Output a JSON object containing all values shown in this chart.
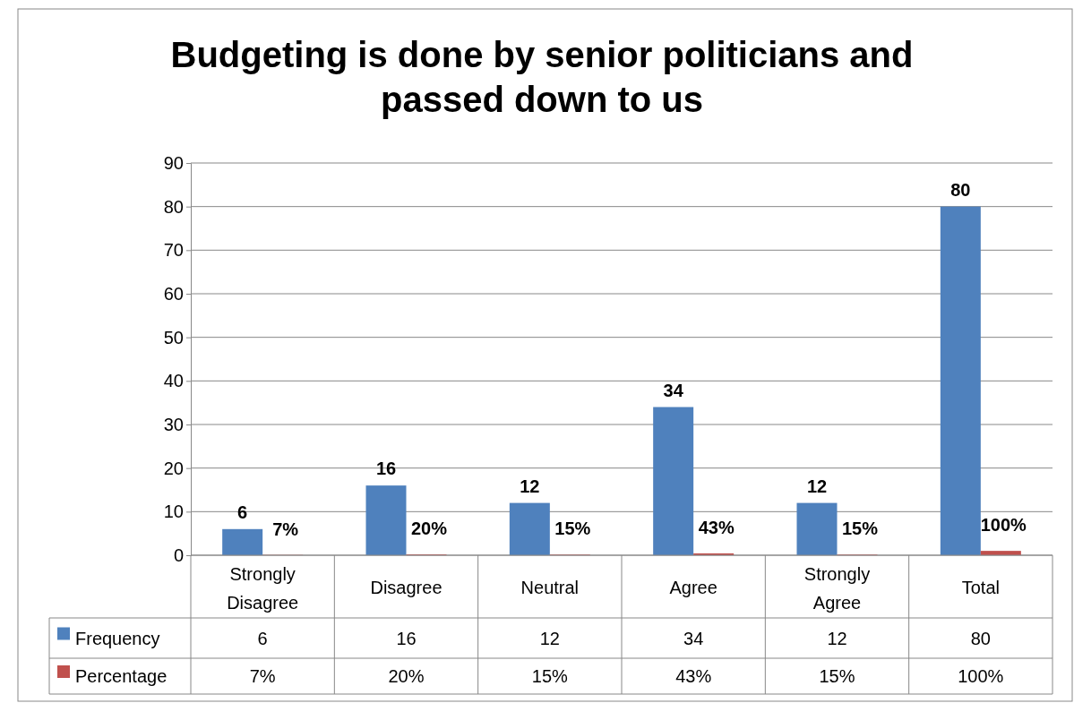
{
  "chart_data": {
    "type": "bar",
    "title": "Budgeting is done by senior politicians and passed down to us",
    "categories": [
      "Strongly Disagree",
      "Disagree",
      "Neutral",
      "Agree",
      "Strongly Agree",
      "Total"
    ],
    "series": [
      {
        "name": "Frequency",
        "color": "#4f81bd",
        "values": [
          6,
          16,
          12,
          34,
          12,
          80
        ],
        "value_labels": [
          "6",
          "16",
          "12",
          "34",
          "12",
          "80"
        ]
      },
      {
        "name": "Percentage",
        "color": "#c0504d",
        "values": [
          0.07,
          0.2,
          0.15,
          0.43,
          0.15,
          1
        ],
        "value_labels": [
          "7%",
          "20%",
          "15%",
          "43%",
          "15%",
          "100%"
        ]
      }
    ],
    "ylim": [
      0,
      90
    ],
    "yticks": [
      0,
      10,
      20,
      30,
      40,
      50,
      60,
      70,
      80,
      90
    ],
    "grid": "y",
    "legend": "bottom left"
  }
}
